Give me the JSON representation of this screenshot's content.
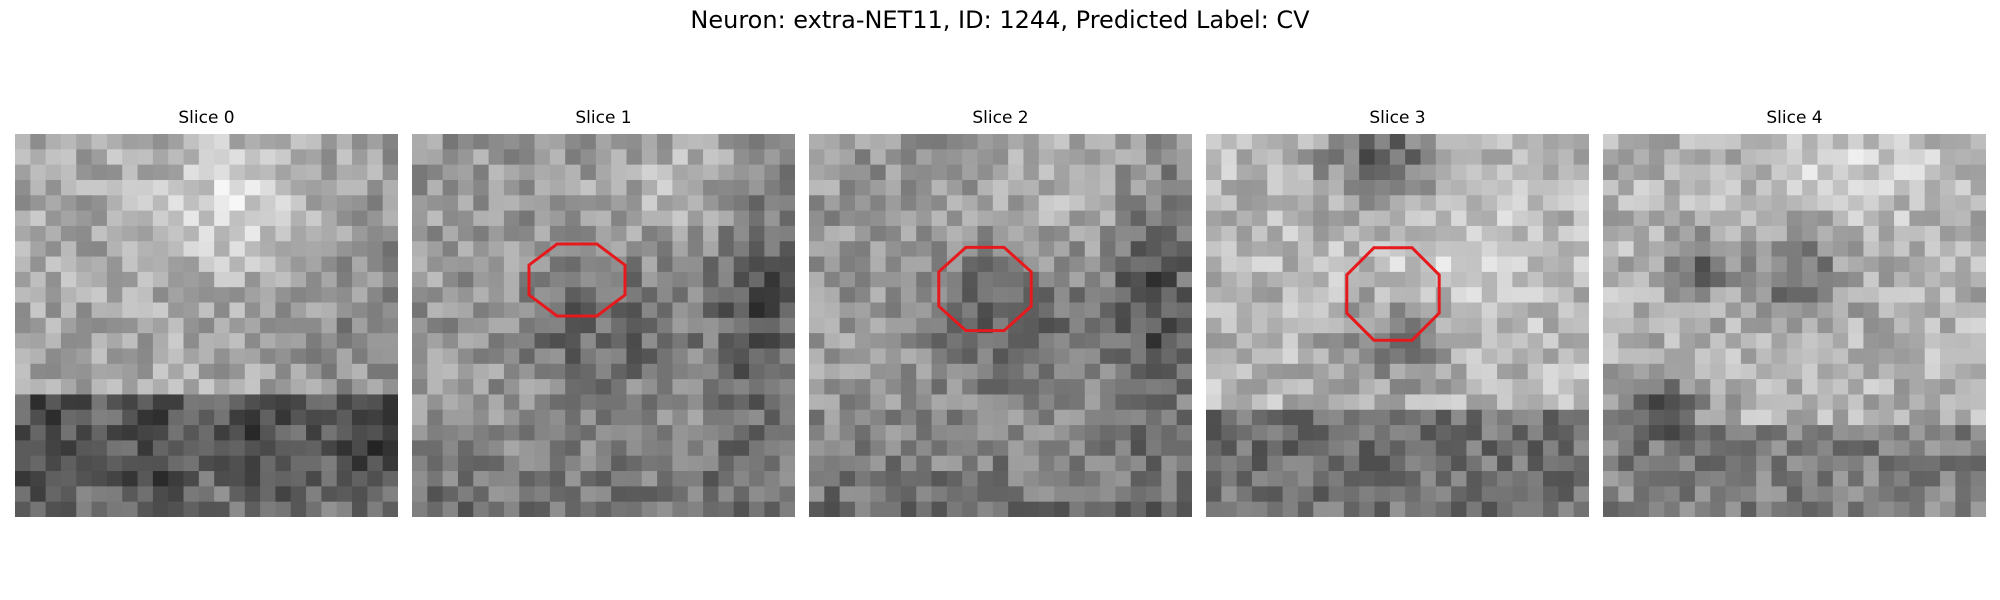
{
  "title": "Neuron: extra-NET11, ID: 1244, Predicted Label: CV",
  "marker_color": "#e6191c",
  "slices": [
    {
      "label": "Slice 0",
      "has_marker": false,
      "variant": "bright-top-dark-bottom"
    },
    {
      "label": "Slice 1",
      "has_marker": true,
      "variant": "dark-ring-center"
    },
    {
      "label": "Slice 2",
      "has_marker": true,
      "variant": "dark-ring-center"
    },
    {
      "label": "Slice 3",
      "has_marker": true,
      "variant": "dark-blob-center"
    },
    {
      "label": "Slice 4",
      "has_marker": false,
      "variant": "dark-spots"
    }
  ]
}
